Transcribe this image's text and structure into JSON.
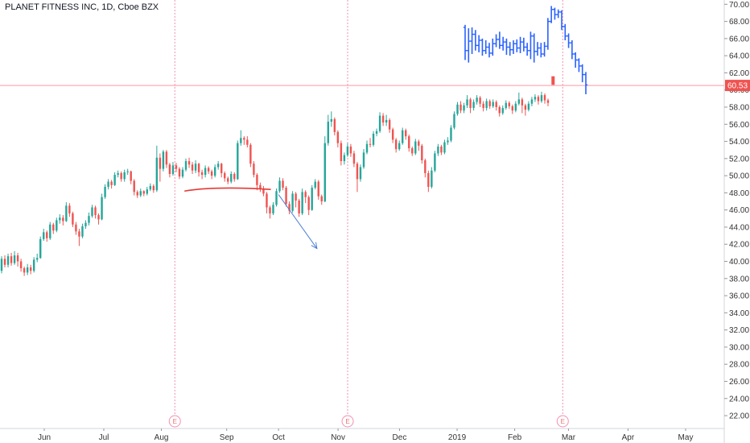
{
  "header": {
    "title": "PLANET FITNESS INC, 1D, Cboe BZX"
  },
  "colors": {
    "up": "#26a69a",
    "down": "#ef5350",
    "up_blue": "#2962ff",
    "current_price_line": "#ff6b7a",
    "earnings_line": "#f48fb1",
    "trend_line": "#e53935",
    "arrow": "#4a7fd4",
    "axis_border": "#d1d4dc"
  },
  "chart_data": {
    "type": "candlestick",
    "title": "PLANET FITNESS INC, 1D, Cboe BZX",
    "y_axis": {
      "ticks": [
        22,
        24,
        26,
        28,
        30,
        32,
        34,
        36,
        38,
        40,
        42,
        44,
        46,
        48,
        50,
        52,
        54,
        56,
        58,
        60,
        62,
        64,
        66,
        68,
        70
      ],
      "range": [
        20.5,
        70.5
      ],
      "position": "right"
    },
    "x_axis": {
      "labels": [
        {
          "label": "Jun",
          "date": "2018-06-01"
        },
        {
          "label": "Jul",
          "date": "2018-07-02"
        },
        {
          "label": "Aug",
          "date": "2018-08-01"
        },
        {
          "label": "Sep",
          "date": "2018-09-04"
        },
        {
          "label": "Oct",
          "date": "2018-10-01"
        },
        {
          "label": "Nov",
          "date": "2018-11-01"
        },
        {
          "label": "Dec",
          "date": "2018-12-03"
        },
        {
          "label": "2019",
          "date": "2019-01-02"
        },
        {
          "label": "Feb",
          "date": "2019-02-01"
        },
        {
          "label": "Mar",
          "date": "2019-03-01"
        },
        {
          "label": "Apr",
          "date": "2019-04-01"
        },
        {
          "label": "May",
          "date": "2019-05-01"
        }
      ]
    },
    "current_price": {
      "value": 60.53,
      "label": "60.53"
    },
    "earnings": [
      {
        "date": "2018-08-08",
        "label": "E"
      },
      {
        "date": "2018-11-06",
        "label": "E"
      },
      {
        "date": "2019-02-26",
        "label": "E"
      }
    ],
    "candles_main": [
      [
        38.9,
        40.3,
        40.6,
        38.6
      ],
      [
        40.3,
        39.6,
        40.7,
        39.3
      ],
      [
        39.6,
        40.6,
        40.9,
        39.3
      ],
      [
        40.6,
        39.8,
        41.0,
        39.5
      ],
      [
        39.8,
        40.7,
        41.2,
        39.6
      ],
      [
        40.7,
        40.0,
        41.0,
        39.4
      ],
      [
        40.0,
        39.2,
        40.3,
        38.8
      ],
      [
        39.2,
        38.7,
        39.4,
        38.3
      ],
      [
        38.7,
        39.3,
        39.7,
        38.4
      ],
      [
        39.3,
        38.9,
        39.6,
        38.5
      ],
      [
        38.9,
        40.2,
        40.5,
        38.7
      ],
      [
        40.2,
        40.4,
        40.9,
        39.9
      ],
      [
        40.4,
        42.6,
        42.9,
        40.3
      ],
      [
        42.6,
        43.4,
        43.8,
        42.4
      ],
      [
        43.4,
        42.7,
        43.6,
        42.3
      ],
      [
        42.7,
        44.3,
        44.6,
        42.5
      ],
      [
        44.3,
        43.6,
        44.5,
        43.2
      ],
      [
        43.6,
        44.8,
        45.1,
        43.4
      ],
      [
        44.8,
        45.1,
        45.5,
        44.4
      ],
      [
        45.1,
        44.7,
        45.4,
        44.2
      ],
      [
        44.7,
        46.5,
        46.9,
        44.6
      ],
      [
        46.5,
        45.6,
        46.8,
        45.2
      ],
      [
        45.6,
        44.3,
        45.8,
        44.0
      ],
      [
        44.3,
        43.5,
        44.6,
        43.1
      ],
      [
        43.5,
        42.9,
        43.8,
        41.8
      ],
      [
        42.9,
        44.1,
        44.4,
        42.7
      ],
      [
        44.1,
        44.5,
        44.8,
        43.8
      ],
      [
        44.5,
        45.3,
        45.7,
        44.2
      ],
      [
        45.3,
        46.3,
        46.6,
        45.1
      ],
      [
        46.3,
        45.4,
        46.5,
        45.0
      ],
      [
        45.4,
        44.9,
        45.6,
        44.3
      ],
      [
        44.9,
        47.5,
        47.9,
        44.8
      ],
      [
        47.5,
        48.7,
        49.0,
        47.3
      ],
      [
        48.7,
        49.3,
        49.6,
        48.4
      ],
      [
        49.3,
        48.9,
        49.5,
        48.5
      ],
      [
        48.9,
        50.1,
        50.4,
        48.8
      ],
      [
        50.1,
        50.3,
        50.6,
        49.8
      ],
      [
        50.3,
        49.6,
        50.5,
        49.3
      ],
      [
        49.6,
        50.4,
        50.7,
        49.3
      ],
      [
        50.4,
        50.5,
        50.8,
        50.1
      ],
      [
        50.5,
        49.4,
        50.6,
        49.0
      ],
      [
        49.4,
        48.1,
        49.6,
        47.7
      ],
      [
        48.1,
        47.7,
        48.3,
        47.4
      ],
      [
        47.7,
        48.2,
        48.5,
        47.5
      ],
      [
        48.2,
        47.9,
        48.3,
        47.6
      ],
      [
        47.9,
        48.4,
        48.7,
        47.7
      ],
      [
        48.4,
        48.8,
        49.1,
        48.2
      ],
      [
        48.8,
        48.3,
        49.0,
        48.0
      ],
      [
        48.3,
        52.1,
        53.5,
        48.1
      ],
      [
        52.1,
        50.8,
        52.6,
        49.3
      ],
      [
        50.8,
        52.8,
        53.0,
        50.5
      ],
      [
        52.8,
        51.3,
        53.0,
        50.9
      ],
      [
        51.3,
        50.2,
        51.5,
        49.8
      ],
      [
        50.2,
        51.2,
        51.6,
        50.0
      ],
      [
        51.2,
        50.8,
        51.5,
        50.4
      ],
      [
        50.8,
        49.9,
        51.0,
        49.6
      ],
      [
        49.9,
        50.7,
        51.0,
        49.7
      ],
      [
        50.7,
        51.7,
        52.0,
        50.5
      ],
      [
        51.7,
        51.3,
        52.1,
        50.9
      ],
      [
        51.3,
        50.6,
        51.6,
        50.2
      ],
      [
        50.6,
        51.4,
        51.8,
        50.3
      ],
      [
        51.4,
        50.4,
        51.5,
        49.9
      ],
      [
        50.4,
        50.1,
        50.7,
        49.6
      ],
      [
        50.1,
        50.9,
        51.2,
        49.8
      ],
      [
        50.9,
        50.5,
        51.1,
        50.2
      ],
      [
        50.5,
        50.0,
        50.7,
        49.6
      ],
      [
        50.0,
        51.0,
        51.3,
        49.8
      ],
      [
        51.0,
        51.4,
        51.7,
        50.7
      ],
      [
        51.4,
        50.3,
        51.5,
        49.8
      ],
      [
        50.3,
        49.7,
        50.5,
        49.3
      ],
      [
        49.7,
        49.3,
        49.9,
        49.0
      ],
      [
        49.3,
        50.2,
        50.5,
        49.1
      ],
      [
        50.2,
        49.6,
        50.4,
        49.3
      ],
      [
        49.6,
        53.8,
        54.1,
        49.5
      ],
      [
        53.8,
        54.4,
        55.3,
        53.5
      ],
      [
        54.4,
        54.2,
        54.6,
        53.6
      ],
      [
        54.2,
        53.6,
        54.6,
        53.3
      ],
      [
        53.6,
        51.4,
        53.8,
        51.0
      ],
      [
        51.4,
        50.1,
        51.7,
        49.8
      ],
      [
        50.1,
        48.9,
        50.3,
        48.3
      ],
      [
        48.9,
        48.5,
        49.2,
        48.1
      ],
      [
        48.5,
        47.9,
        48.8,
        47.6
      ],
      [
        47.9,
        46.3,
        48.1,
        45.6
      ],
      [
        46.3,
        45.6,
        46.5,
        45.0
      ],
      [
        45.6,
        46.6,
        46.9,
        45.4
      ],
      [
        46.6,
        48.2,
        48.5,
        46.4
      ],
      [
        48.2,
        49.4,
        49.8,
        48.0
      ],
      [
        49.4,
        48.6,
        49.7,
        48.3
      ],
      [
        48.6,
        46.7,
        48.8,
        46.4
      ],
      [
        46.7,
        45.9,
        47.0,
        45.5
      ],
      [
        45.9,
        47.9,
        48.2,
        45.7
      ],
      [
        47.9,
        47.1,
        48.1,
        46.3
      ],
      [
        47.1,
        45.6,
        47.3,
        45.2
      ],
      [
        45.6,
        48.1,
        48.5,
        45.4
      ],
      [
        48.1,
        47.5,
        48.3,
        46.8
      ],
      [
        47.5,
        46.0,
        47.7,
        45.4
      ],
      [
        46.0,
        48.6,
        48.9,
        45.9
      ],
      [
        48.6,
        49.3,
        49.6,
        48.4
      ],
      [
        49.3,
        47.6,
        49.5,
        47.2
      ],
      [
        47.6,
        47.0,
        47.8,
        46.6
      ],
      [
        47.0,
        53.8,
        54.6,
        46.9
      ],
      [
        53.8,
        56.3,
        57.1,
        53.5
      ],
      [
        56.3,
        56.6,
        57.5,
        55.7
      ],
      [
        56.6,
        55.1,
        56.8,
        54.7
      ],
      [
        55.1,
        53.8,
        55.3,
        53.3
      ],
      [
        53.8,
        51.7,
        54.1,
        51.2
      ],
      [
        51.7,
        52.4,
        52.7,
        51.3
      ],
      [
        52.4,
        53.4,
        53.8,
        52.2
      ],
      [
        53.4,
        52.6,
        53.7,
        52.2
      ],
      [
        52.6,
        51.4,
        52.9,
        51.0
      ],
      [
        51.4,
        49.6,
        51.6,
        48.1
      ],
      [
        49.6,
        51.0,
        51.3,
        49.3
      ],
      [
        51.0,
        52.7,
        53.1,
        50.8
      ],
      [
        52.7,
        53.7,
        54.1,
        52.5
      ],
      [
        53.7,
        53.6,
        54.4,
        53.3
      ],
      [
        53.6,
        54.9,
        55.2,
        53.4
      ],
      [
        54.9,
        55.2,
        55.5,
        54.6
      ],
      [
        55.2,
        57.0,
        57.4,
        55.0
      ],
      [
        57.0,
        56.2,
        57.3,
        55.8
      ],
      [
        56.2,
        56.5,
        57.1,
        55.8
      ],
      [
        56.5,
        55.4,
        56.7,
        55.0
      ],
      [
        55.4,
        54.2,
        55.6,
        53.8
      ],
      [
        54.2,
        53.1,
        54.4,
        52.7
      ],
      [
        53.1,
        53.8,
        54.1,
        52.9
      ],
      [
        53.8,
        55.3,
        55.6,
        53.6
      ],
      [
        55.3,
        54.6,
        55.5,
        54.2
      ],
      [
        54.6,
        53.2,
        54.8,
        52.8
      ],
      [
        53.2,
        52.6,
        53.4,
        52.3
      ],
      [
        52.6,
        54.0,
        54.3,
        52.4
      ],
      [
        54.0,
        53.5,
        54.2,
        52.9
      ],
      [
        53.5,
        51.8,
        53.7,
        51.4
      ],
      [
        51.8,
        50.3,
        52.0,
        49.8
      ],
      [
        50.3,
        48.7,
        50.6,
        48.1
      ],
      [
        48.7,
        50.6,
        51.0,
        48.5
      ],
      [
        50.6,
        52.6,
        52.9,
        50.4
      ],
      [
        52.6,
        53.4,
        53.7,
        52.3
      ],
      [
        53.4,
        52.7,
        53.6,
        52.4
      ],
      [
        52.7,
        53.9,
        54.2,
        52.5
      ],
      [
        53.9,
        54.1,
        54.5,
        53.6
      ],
      [
        54.1,
        55.6,
        55.9,
        53.9
      ],
      [
        55.6,
        57.2,
        57.5,
        55.4
      ],
      [
        57.2,
        58.3,
        58.6,
        57.0
      ],
      [
        58.3,
        57.6,
        58.7,
        57.3
      ],
      [
        57.6,
        58.2,
        58.5,
        57.3
      ],
      [
        58.2,
        58.9,
        59.4,
        57.9
      ],
      [
        58.9,
        57.9,
        59.1,
        57.3
      ],
      [
        57.9,
        58.6,
        58.9,
        57.6
      ],
      [
        58.6,
        59.1,
        59.4,
        58.3
      ],
      [
        59.1,
        58.4,
        59.3,
        58.0
      ],
      [
        58.4,
        57.9,
        58.7,
        57.5
      ],
      [
        57.9,
        58.7,
        59.0,
        57.6
      ],
      [
        58.7,
        58.1,
        58.9,
        57.8
      ],
      [
        58.1,
        58.6,
        58.9,
        57.9
      ],
      [
        58.6,
        58.0,
        58.8,
        57.6
      ],
      [
        58.0,
        57.3,
        58.2,
        56.9
      ],
      [
        57.3,
        57.9,
        58.2,
        57.1
      ],
      [
        57.9,
        58.5,
        58.8,
        57.7
      ],
      [
        58.5,
        58.1,
        58.7,
        57.8
      ],
      [
        58.1,
        57.6,
        58.3,
        57.2
      ],
      [
        57.6,
        58.4,
        58.7,
        57.4
      ],
      [
        58.4,
        58.9,
        59.7,
        58.2
      ],
      [
        58.9,
        58.2,
        59.1,
        57.3
      ],
      [
        58.2,
        57.7,
        58.4,
        57.0
      ],
      [
        57.7,
        58.4,
        58.7,
        57.5
      ],
      [
        58.4,
        58.9,
        59.2,
        58.1
      ],
      [
        58.9,
        59.2,
        59.5,
        58.6
      ],
      [
        59.2,
        58.7,
        59.4,
        58.3
      ],
      [
        58.7,
        59.4,
        59.8,
        58.5
      ],
      [
        59.4,
        58.8,
        59.6,
        58.4
      ],
      [
        58.8,
        58.5,
        59.0,
        58.1
      ]
    ],
    "candles_blue": [
      [
        67.3,
        64.6,
        67.6,
        63.5
      ],
      [
        64.6,
        65.7,
        67.2,
        63.2
      ],
      [
        65.7,
        66.5,
        67.3,
        64.2
      ],
      [
        66.5,
        65.2,
        67.0,
        64.6
      ],
      [
        65.2,
        65.8,
        66.4,
        64.4
      ],
      [
        65.8,
        64.6,
        66.0,
        64.0
      ],
      [
        64.6,
        65.0,
        65.8,
        64.2
      ],
      [
        65.0,
        64.3,
        65.5,
        63.8
      ],
      [
        64.3,
        65.4,
        66.0,
        64.0
      ],
      [
        65.4,
        65.9,
        66.5,
        65.0
      ],
      [
        65.9,
        65.2,
        66.8,
        64.8
      ],
      [
        65.2,
        65.6,
        66.2,
        64.6
      ],
      [
        65.6,
        65.0,
        66.0,
        64.1
      ],
      [
        65.0,
        64.7,
        65.6,
        64.0
      ],
      [
        64.7,
        65.4,
        65.8,
        64.2
      ],
      [
        65.4,
        64.9,
        65.9,
        64.4
      ],
      [
        64.9,
        65.6,
        66.2,
        64.3
      ],
      [
        65.6,
        65.0,
        66.1,
        64.5
      ],
      [
        65.0,
        64.6,
        65.5,
        64.0
      ],
      [
        64.6,
        66.3,
        66.8,
        63.6
      ],
      [
        66.3,
        64.5,
        66.6,
        63.2
      ],
      [
        64.5,
        64.9,
        65.6,
        64.0
      ],
      [
        64.9,
        64.2,
        65.5,
        63.8
      ],
      [
        64.2,
        65.1,
        65.6,
        63.9
      ],
      [
        65.1,
        68.0,
        68.4,
        64.7
      ],
      [
        68.0,
        69.4,
        69.8,
        67.8
      ],
      [
        69.4,
        68.8,
        69.6,
        68.2
      ],
      [
        68.8,
        69.1,
        69.4,
        68.4
      ],
      [
        69.1,
        67.4,
        69.3,
        67.0
      ],
      [
        67.4,
        66.3,
        67.7,
        65.8
      ],
      [
        66.3,
        65.5,
        66.6,
        64.9
      ],
      [
        65.5,
        64.2,
        65.8,
        63.6
      ],
      [
        64.2,
        63.5,
        64.4,
        62.6
      ],
      [
        63.5,
        62.8,
        63.7,
        62.1
      ],
      [
        62.8,
        61.8,
        63.0,
        60.9
      ],
      [
        61.8,
        60.6,
        62.1,
        59.5
      ]
    ],
    "annotations": {
      "red_arc": {
        "from": {
          "date": "2018-08-13",
          "price": 48.2
        },
        "peak": {
          "date": "2018-09-01",
          "price": 48.55
        },
        "to": {
          "date": "2018-09-27",
          "price": 48.4
        }
      },
      "blue_arrow": {
        "from": {
          "date": "2018-10-01",
          "price": 47.8
        },
        "to": {
          "date": "2018-10-21",
          "price": 41.5
        }
      },
      "red_marker": {
        "date": "2019-02-26",
        "low": 60.6,
        "high": 61.6
      }
    }
  }
}
